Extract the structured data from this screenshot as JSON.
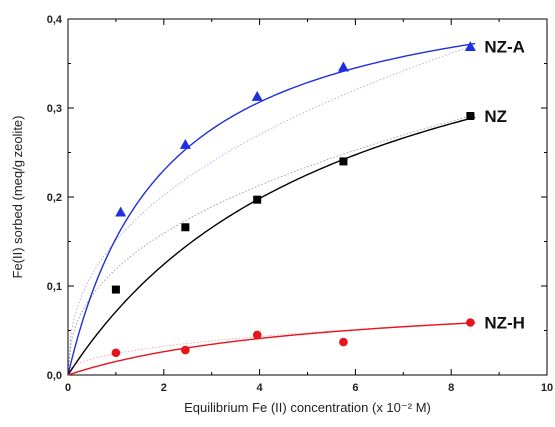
{
  "chart_data": {
    "type": "scatter",
    "xlabel": "Equilibrium Fe (II) concentration (x 10⁻² M)",
    "ylabel": "Fe(II) sorbed (meq/g zeolite)",
    "xlim": [
      0,
      10
    ],
    "ylim": [
      0,
      0.4
    ],
    "x_ticks": [
      "0",
      "2",
      "4",
      "6",
      "8",
      "10"
    ],
    "y_ticks": [
      "0,0",
      "0,1",
      "0,2",
      "0,3",
      "0,4"
    ],
    "grid": false,
    "series": [
      {
        "name": "NZ-A",
        "color": "#1f2fe0",
        "marker": "triangle",
        "points": [
          [
            1.1,
            0.183
          ],
          [
            2.45,
            0.259
          ],
          [
            3.95,
            0.313
          ],
          [
            5.75,
            0.346
          ],
          [
            8.4,
            0.369
          ]
        ],
        "fit_langmuir": {
          "qmax": 0.46,
          "K": 0.5
        }
      },
      {
        "name": "NZ",
        "color": "#000000",
        "marker": "square",
        "points": [
          [
            1.0,
            0.096
          ],
          [
            2.45,
            0.166
          ],
          [
            3.95,
            0.197
          ],
          [
            5.75,
            0.24
          ],
          [
            8.4,
            0.291
          ]
        ],
        "fit_langmuir": {
          "qmax": 0.49,
          "K": 0.17
        }
      },
      {
        "name": "NZ-H",
        "color": "#e8141c",
        "marker": "circle",
        "points": [
          [
            1.0,
            0.025
          ],
          [
            2.45,
            0.028
          ],
          [
            3.95,
            0.045
          ],
          [
            5.75,
            0.037
          ],
          [
            8.4,
            0.059
          ]
        ],
        "fit_langmuir": {
          "qmax": 0.095,
          "K": 0.19
        }
      }
    ]
  }
}
